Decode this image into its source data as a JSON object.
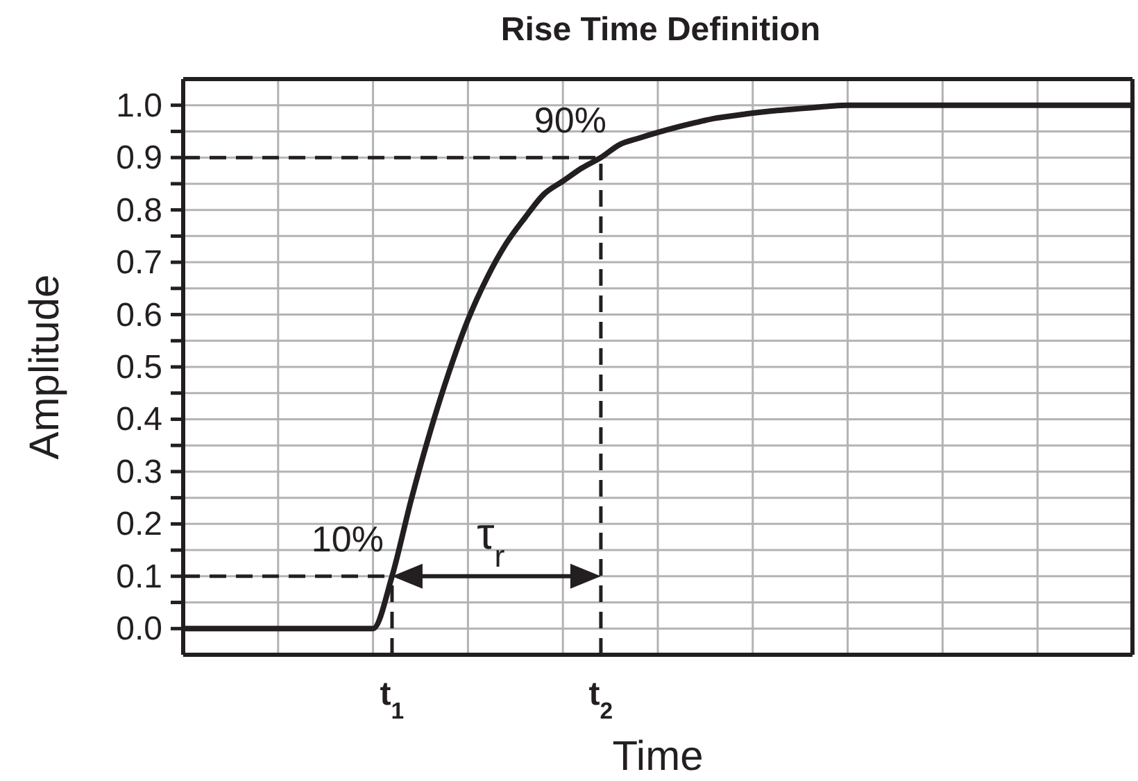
{
  "chart_data": {
    "type": "line",
    "title": "Rise Time Definition",
    "xlabel": "Time",
    "ylabel": "Amplitude",
    "categories": [
      null,
      null,
      null,
      null,
      null,
      null,
      null,
      null,
      null,
      null,
      null,
      "t$_{1}$",
      null,
      null,
      null,
      null,
      null,
      null,
      null,
      null,
      null,
      null,
      "t$_{2}$",
      null,
      null,
      null,
      null,
      null,
      null,
      null,
      null,
      null,
      null,
      null,
      null,
      null,
      null,
      null,
      null,
      null,
      null,
      null,
      null,
      null,
      null,
      null,
      null,
      null,
      null,
      null,
      null
    ],
    "ylim": [
      -0.05,
      1.05
    ],
    "yticks": [
      {
        "value": 0,
        "label": "0.0"
      },
      {
        "value": 0.05,
        "label": null
      },
      {
        "value": 0.1,
        "label": "0.1"
      },
      {
        "value": 0.15,
        "label": null
      },
      {
        "value": 0.2,
        "label": "0.2"
      },
      {
        "value": 0.25,
        "label": null
      },
      {
        "value": 0.3,
        "label": "0.3"
      },
      {
        "value": 0.35,
        "label": null
      },
      {
        "value": 0.4,
        "label": "0.4"
      },
      {
        "value": 0.45,
        "label": null
      },
      {
        "value": 0.5,
        "label": "0.5"
      },
      {
        "value": 0.55,
        "label": null
      },
      {
        "value": 0.6,
        "label": "0.6"
      },
      {
        "value": 0.65,
        "label": null
      },
      {
        "value": 0.7,
        "label": "0.7"
      },
      {
        "value": 0.75,
        "label": null
      },
      {
        "value": 0.8,
        "label": "0.8"
      },
      {
        "value": 0.85,
        "label": null
      },
      {
        "value": 0.9,
        "label": "0.9"
      },
      {
        "value": 0.95,
        "label": null
      },
      {
        "value": 1,
        "label": "1.0"
      }
    ],
    "grid": true,
    "marker": "none",
    "line_style": "solid",
    "series": [
      {
        "color": "#231f20",
        "values": [
          0,
          0,
          0,
          0,
          0,
          0,
          0,
          0,
          0,
          0,
          0,
          0.1,
          0.245,
          0.375,
          0.49,
          0.59,
          0.67,
          0.735,
          0.785,
          0.83,
          0.855,
          0.88,
          0.9,
          0.925,
          0.937,
          0.948,
          0.958,
          0.967,
          0.975,
          0.98,
          0.985,
          0.989,
          0.992,
          0.995,
          0.998,
          1,
          1,
          1,
          1,
          1,
          1,
          1,
          1,
          1,
          1,
          1,
          1,
          1,
          1,
          1,
          1
        ]
      }
    ],
    "ref_lines": [
      {
        "axis": "y",
        "value": 0.1,
        "color": "#231f20",
        "line_style": "dashed"
      },
      {
        "axis": "y",
        "value": 0.9,
        "color": "#231f20",
        "line_style": "dashed"
      },
      {
        "axis": "x",
        "value": "t$_{1}$",
        "color": "#231f20",
        "line_style": "dashed"
      },
      {
        "axis": "x",
        "value": "t$_{2}$",
        "color": "#231f20",
        "line_style": "dashed"
      }
    ],
    "annotations": [
      {
        "text": "10%",
        "x": "t$_{1}$",
        "y": 0.1
      },
      {
        "text": "90%",
        "x": "t$_{2}$",
        "y": 0.9
      },
      "τ$_{r}$"
    ]
  }
}
